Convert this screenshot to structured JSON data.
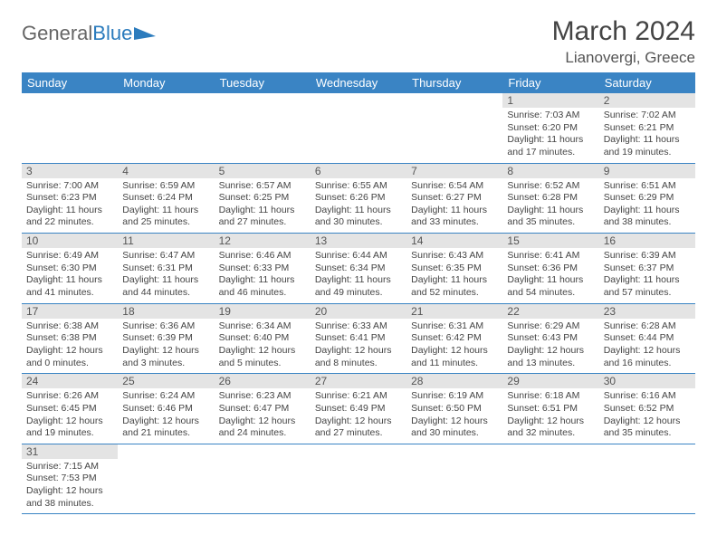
{
  "brand": {
    "part1": "General",
    "part2": "Blue"
  },
  "title": "March 2024",
  "location": "Lianovergi, Greece",
  "colors": {
    "header_bg": "#3a84c4",
    "daynum_bg": "#e4e4e4",
    "rule": "#3a84c4"
  },
  "weekdays": [
    "Sunday",
    "Monday",
    "Tuesday",
    "Wednesday",
    "Thursday",
    "Friday",
    "Saturday"
  ],
  "weeks": [
    [
      null,
      null,
      null,
      null,
      null,
      {
        "n": "1",
        "sr": "Sunrise: 7:03 AM",
        "ss": "Sunset: 6:20 PM",
        "d1": "Daylight: 11 hours",
        "d2": "and 17 minutes."
      },
      {
        "n": "2",
        "sr": "Sunrise: 7:02 AM",
        "ss": "Sunset: 6:21 PM",
        "d1": "Daylight: 11 hours",
        "d2": "and 19 minutes."
      }
    ],
    [
      {
        "n": "3",
        "sr": "Sunrise: 7:00 AM",
        "ss": "Sunset: 6:23 PM",
        "d1": "Daylight: 11 hours",
        "d2": "and 22 minutes."
      },
      {
        "n": "4",
        "sr": "Sunrise: 6:59 AM",
        "ss": "Sunset: 6:24 PM",
        "d1": "Daylight: 11 hours",
        "d2": "and 25 minutes."
      },
      {
        "n": "5",
        "sr": "Sunrise: 6:57 AM",
        "ss": "Sunset: 6:25 PM",
        "d1": "Daylight: 11 hours",
        "d2": "and 27 minutes."
      },
      {
        "n": "6",
        "sr": "Sunrise: 6:55 AM",
        "ss": "Sunset: 6:26 PM",
        "d1": "Daylight: 11 hours",
        "d2": "and 30 minutes."
      },
      {
        "n": "7",
        "sr": "Sunrise: 6:54 AM",
        "ss": "Sunset: 6:27 PM",
        "d1": "Daylight: 11 hours",
        "d2": "and 33 minutes."
      },
      {
        "n": "8",
        "sr": "Sunrise: 6:52 AM",
        "ss": "Sunset: 6:28 PM",
        "d1": "Daylight: 11 hours",
        "d2": "and 35 minutes."
      },
      {
        "n": "9",
        "sr": "Sunrise: 6:51 AM",
        "ss": "Sunset: 6:29 PM",
        "d1": "Daylight: 11 hours",
        "d2": "and 38 minutes."
      }
    ],
    [
      {
        "n": "10",
        "sr": "Sunrise: 6:49 AM",
        "ss": "Sunset: 6:30 PM",
        "d1": "Daylight: 11 hours",
        "d2": "and 41 minutes."
      },
      {
        "n": "11",
        "sr": "Sunrise: 6:47 AM",
        "ss": "Sunset: 6:31 PM",
        "d1": "Daylight: 11 hours",
        "d2": "and 44 minutes."
      },
      {
        "n": "12",
        "sr": "Sunrise: 6:46 AM",
        "ss": "Sunset: 6:33 PM",
        "d1": "Daylight: 11 hours",
        "d2": "and 46 minutes."
      },
      {
        "n": "13",
        "sr": "Sunrise: 6:44 AM",
        "ss": "Sunset: 6:34 PM",
        "d1": "Daylight: 11 hours",
        "d2": "and 49 minutes."
      },
      {
        "n": "14",
        "sr": "Sunrise: 6:43 AM",
        "ss": "Sunset: 6:35 PM",
        "d1": "Daylight: 11 hours",
        "d2": "and 52 minutes."
      },
      {
        "n": "15",
        "sr": "Sunrise: 6:41 AM",
        "ss": "Sunset: 6:36 PM",
        "d1": "Daylight: 11 hours",
        "d2": "and 54 minutes."
      },
      {
        "n": "16",
        "sr": "Sunrise: 6:39 AM",
        "ss": "Sunset: 6:37 PM",
        "d1": "Daylight: 11 hours",
        "d2": "and 57 minutes."
      }
    ],
    [
      {
        "n": "17",
        "sr": "Sunrise: 6:38 AM",
        "ss": "Sunset: 6:38 PM",
        "d1": "Daylight: 12 hours",
        "d2": "and 0 minutes."
      },
      {
        "n": "18",
        "sr": "Sunrise: 6:36 AM",
        "ss": "Sunset: 6:39 PM",
        "d1": "Daylight: 12 hours",
        "d2": "and 3 minutes."
      },
      {
        "n": "19",
        "sr": "Sunrise: 6:34 AM",
        "ss": "Sunset: 6:40 PM",
        "d1": "Daylight: 12 hours",
        "d2": "and 5 minutes."
      },
      {
        "n": "20",
        "sr": "Sunrise: 6:33 AM",
        "ss": "Sunset: 6:41 PM",
        "d1": "Daylight: 12 hours",
        "d2": "and 8 minutes."
      },
      {
        "n": "21",
        "sr": "Sunrise: 6:31 AM",
        "ss": "Sunset: 6:42 PM",
        "d1": "Daylight: 12 hours",
        "d2": "and 11 minutes."
      },
      {
        "n": "22",
        "sr": "Sunrise: 6:29 AM",
        "ss": "Sunset: 6:43 PM",
        "d1": "Daylight: 12 hours",
        "d2": "and 13 minutes."
      },
      {
        "n": "23",
        "sr": "Sunrise: 6:28 AM",
        "ss": "Sunset: 6:44 PM",
        "d1": "Daylight: 12 hours",
        "d2": "and 16 minutes."
      }
    ],
    [
      {
        "n": "24",
        "sr": "Sunrise: 6:26 AM",
        "ss": "Sunset: 6:45 PM",
        "d1": "Daylight: 12 hours",
        "d2": "and 19 minutes."
      },
      {
        "n": "25",
        "sr": "Sunrise: 6:24 AM",
        "ss": "Sunset: 6:46 PM",
        "d1": "Daylight: 12 hours",
        "d2": "and 21 minutes."
      },
      {
        "n": "26",
        "sr": "Sunrise: 6:23 AM",
        "ss": "Sunset: 6:47 PM",
        "d1": "Daylight: 12 hours",
        "d2": "and 24 minutes."
      },
      {
        "n": "27",
        "sr": "Sunrise: 6:21 AM",
        "ss": "Sunset: 6:49 PM",
        "d1": "Daylight: 12 hours",
        "d2": "and 27 minutes."
      },
      {
        "n": "28",
        "sr": "Sunrise: 6:19 AM",
        "ss": "Sunset: 6:50 PM",
        "d1": "Daylight: 12 hours",
        "d2": "and 30 minutes."
      },
      {
        "n": "29",
        "sr": "Sunrise: 6:18 AM",
        "ss": "Sunset: 6:51 PM",
        "d1": "Daylight: 12 hours",
        "d2": "and 32 minutes."
      },
      {
        "n": "30",
        "sr": "Sunrise: 6:16 AM",
        "ss": "Sunset: 6:52 PM",
        "d1": "Daylight: 12 hours",
        "d2": "and 35 minutes."
      }
    ],
    [
      {
        "n": "31",
        "sr": "Sunrise: 7:15 AM",
        "ss": "Sunset: 7:53 PM",
        "d1": "Daylight: 12 hours",
        "d2": "and 38 minutes."
      },
      null,
      null,
      null,
      null,
      null,
      null
    ]
  ]
}
